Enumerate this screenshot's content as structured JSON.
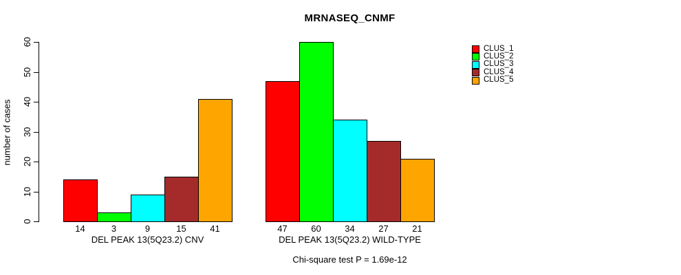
{
  "chart_data": {
    "type": "bar",
    "title": "MRNASEQ_CNMF",
    "ylabel": "number of cases",
    "xlabel": "",
    "ylim": [
      0,
      60
    ],
    "yticks": [
      0,
      10,
      20,
      30,
      40,
      50,
      60
    ],
    "grid": false,
    "legend_position": "top-right",
    "bar_border_color": "#000000",
    "series": [
      {
        "name": "CLUS_1",
        "color": "#FF0000"
      },
      {
        "name": "CLUS_2",
        "color": "#00FF00"
      },
      {
        "name": "CLUS_3",
        "color": "#00FFFF"
      },
      {
        "name": "CLUS_4",
        "color": "#A52A2A"
      },
      {
        "name": "CLUS_5",
        "color": "#FFA500"
      }
    ],
    "groups": [
      {
        "label": "DEL PEAK 13(5Q23.2) CNV",
        "values": [
          14,
          3,
          9,
          15,
          41
        ]
      },
      {
        "label": "DEL PEAK 13(5Q23.2) WILD-TYPE",
        "values": [
          47,
          60,
          34,
          27,
          21
        ]
      }
    ],
    "bar_value_labels_shown": true,
    "annotation": "Chi-square test P = 1.69e-12"
  }
}
